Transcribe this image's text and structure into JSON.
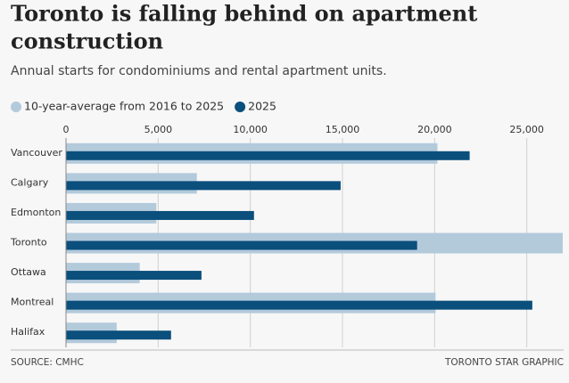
{
  "chart_data": {
    "type": "hbar",
    "title_lines": [
      "Toronto is falling behind on apartment",
      "construction"
    ],
    "subtitle": "Annual starts for condominiums and rental apartment units.",
    "categories": [
      "Vancouver",
      "Calgary",
      "Edmonton",
      "Toronto",
      "Ottawa",
      "Montreal",
      "Halifax"
    ],
    "series": [
      {
        "name": "10-year-average from 2016 to 2025",
        "color": "#b3cadb",
        "values": [
          20150,
          7100,
          4900,
          26950,
          4000,
          20050,
          2750
        ]
      },
      {
        "name": "2025",
        "color": "#0b4f7c",
        "values": [
          21900,
          14900,
          10200,
          19050,
          7350,
          25300,
          5700
        ]
      }
    ],
    "xlim": [
      0,
      27000
    ],
    "xticks": [
      0,
      {
        "value": 5000,
        "label": "5,000"
      },
      {
        "value": 10000,
        "label": "10,000"
      },
      {
        "value": 15000,
        "label": "15,000"
      },
      {
        "value": 20000,
        "label": "20,000"
      },
      {
        "value": 25000,
        "label": "25,000"
      }
    ],
    "grid": true,
    "source": "SOURCE: CMHC",
    "credit": "TORONTO STAR GRAPHIC"
  }
}
